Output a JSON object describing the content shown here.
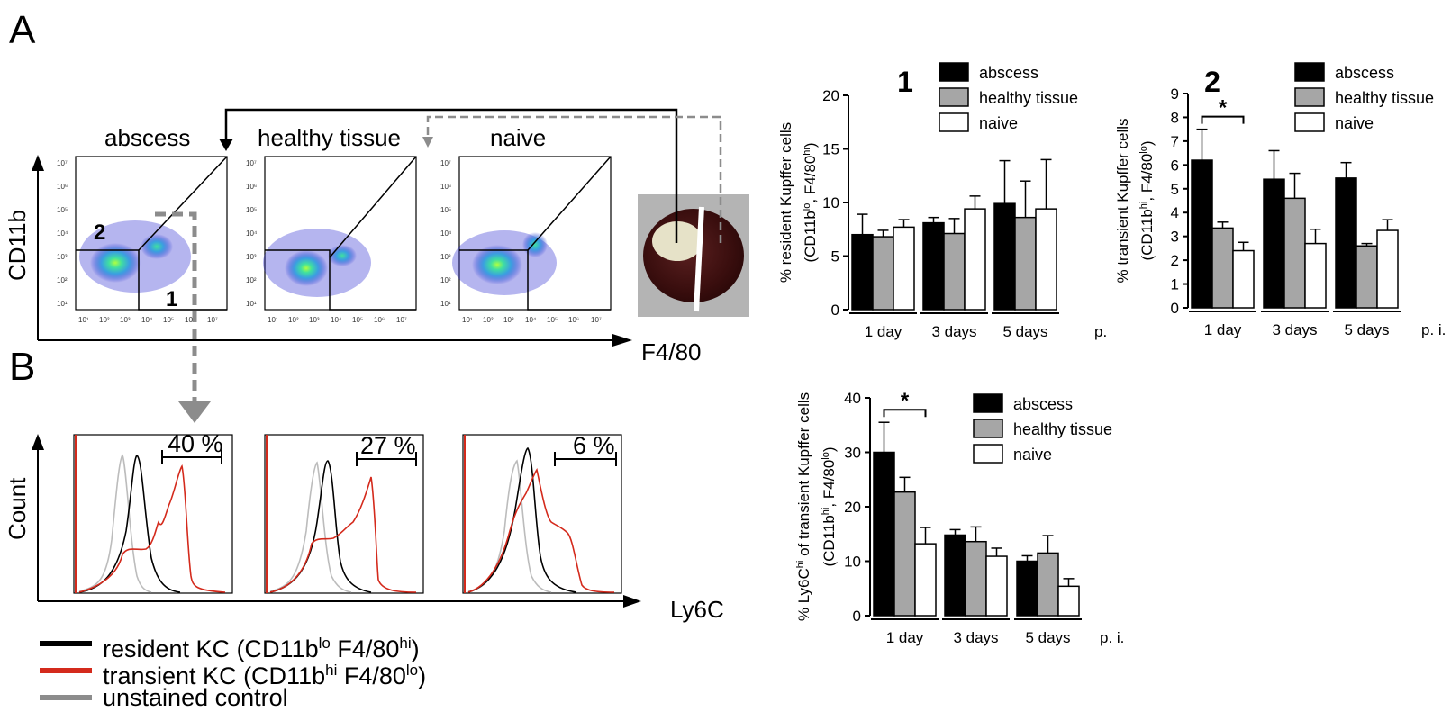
{
  "figure": {
    "panel_a_label": "A",
    "panel_b_label": "B",
    "photo_alt": "liver abscess specimen"
  },
  "flow": {
    "y_axis_label": "CD11b",
    "x_axis_label": "F4/80",
    "count_axis_label": "Count",
    "histogram_x_label": "Ly6C",
    "gate_labels": [
      "1",
      "2"
    ],
    "plots": [
      {
        "title": "abscess",
        "percent": "40 %"
      },
      {
        "title": "healthy tissue",
        "percent": "27 %"
      },
      {
        "title": "naive",
        "percent": "6 %"
      }
    ],
    "tick_labels": [
      "10¹",
      "10²",
      "10³",
      "10⁴",
      "10⁵",
      "10⁶",
      "10⁷"
    ],
    "density_colors": [
      "#2a2ad0",
      "#3aa0e0",
      "#40e0a0",
      "#b0ff40"
    ]
  },
  "histogram_legend": [
    {
      "color": "#000000",
      "prefix": "resident KC (CD11b",
      "sup1": "lo",
      "mid": " F4/80",
      "sup2": "hi",
      "suffix": ")"
    },
    {
      "color": "#d42a1c",
      "prefix": "transient KC (CD11b",
      "sup1": "hi",
      "mid": " F4/80",
      "sup2": "lo",
      "suffix": ")"
    },
    {
      "color": "#8c8c8c",
      "prefix": "unstained control",
      "sup1": "",
      "mid": "",
      "sup2": "",
      "suffix": ""
    }
  ],
  "colors": {
    "abscess": "#000000",
    "healthy tissue": "#a6a6a6",
    "naive": "#ffffff",
    "resident": "#000000",
    "transient": "#d42a1c",
    "unstained": "#8c8c8c",
    "arrow_gray": "#8c8c8c"
  },
  "chart_data": [
    {
      "type": "bar",
      "panel": "1",
      "ylabel": "% resident Kupffer cells",
      "ylabel2_parts": [
        "(CD11b",
        "lo",
        ", F4/80",
        "hi",
        ")"
      ],
      "xlabel_suffix": "p.",
      "categories": [
        "1 day",
        "3 days",
        "5 days"
      ],
      "ylim": [
        0,
        20
      ],
      "yticks": [
        0,
        5,
        10,
        15,
        20
      ],
      "series": [
        {
          "name": "abscess",
          "values": [
            7.0,
            8.1,
            9.9
          ],
          "errors": [
            1.9,
            0.5,
            4.0
          ]
        },
        {
          "name": "healthy tissue",
          "values": [
            6.8,
            7.1,
            8.6
          ],
          "errors": [
            0.6,
            1.4,
            3.4
          ]
        },
        {
          "name": "naive",
          "values": [
            7.7,
            9.4,
            9.4
          ],
          "errors": [
            0.7,
            1.2,
            4.6
          ]
        }
      ],
      "significance": []
    },
    {
      "type": "bar",
      "panel": "2",
      "ylabel": "% transient Kupffer cells",
      "ylabel2_parts": [
        "(CD11b",
        "hi",
        ", F4/80",
        "lo",
        ")"
      ],
      "xlabel_suffix": "p. i.",
      "categories": [
        "1 day",
        "3 days",
        "5 days"
      ],
      "ylim": [
        0,
        9
      ],
      "yticks": [
        0,
        1,
        2,
        3,
        4,
        5,
        6,
        7,
        8,
        9
      ],
      "series": [
        {
          "name": "abscess",
          "values": [
            6.2,
            5.4,
            5.45
          ],
          "errors": [
            1.3,
            1.2,
            0.65
          ]
        },
        {
          "name": "healthy tissue",
          "values": [
            3.35,
            4.6,
            2.6
          ],
          "errors": [
            0.25,
            1.05,
            0.1
          ]
        },
        {
          "name": "naive",
          "values": [
            2.4,
            2.7,
            3.25
          ],
          "errors": [
            0.35,
            0.6,
            0.45
          ]
        }
      ],
      "significance": [
        {
          "group": 0,
          "from": 0,
          "to": 2,
          "label": "*"
        }
      ]
    },
    {
      "type": "bar",
      "panel": "3",
      "ylabel_parts": [
        "% Ly6C",
        "hi",
        " of transient Kupffer cells"
      ],
      "ylabel2_parts": [
        "(CD11b",
        "hi",
        ", F4/80",
        "lo",
        ")"
      ],
      "xlabel_suffix": "p. i.",
      "categories": [
        "1 day",
        "3 days",
        "5 days"
      ],
      "ylim": [
        0,
        40
      ],
      "yticks": [
        0,
        10,
        20,
        30,
        40
      ],
      "series": [
        {
          "name": "abscess",
          "values": [
            30,
            14.8,
            10
          ],
          "errors": [
            5.5,
            1.0,
            1.0
          ]
        },
        {
          "name": "healthy tissue",
          "values": [
            22.7,
            13.6,
            11.5
          ],
          "errors": [
            2.7,
            2.7,
            3.2
          ]
        },
        {
          "name": "naive",
          "values": [
            13.2,
            10.9,
            5.4
          ],
          "errors": [
            3.0,
            1.5,
            1.4
          ]
        }
      ],
      "significance": [
        {
          "group": 0,
          "from": 0,
          "to": 2,
          "label": "*"
        }
      ]
    }
  ]
}
